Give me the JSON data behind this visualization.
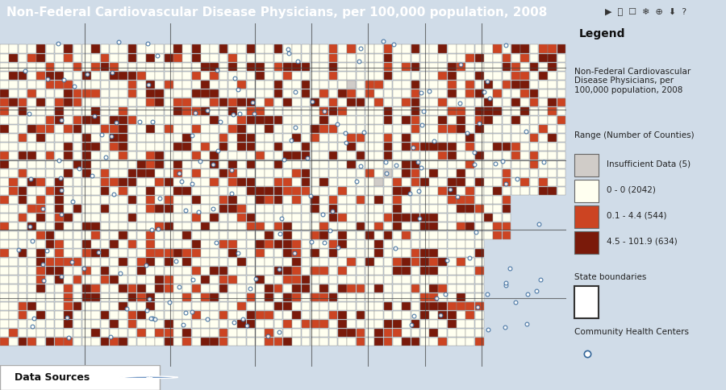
{
  "title": "Non-Federal Cardiovascular Disease Physicians, per 100,000 population, 2008",
  "title_bar_color": "#4a7ab5",
  "title_text_color": "#ffffff",
  "title_fontsize": 11,
  "map_bg_color": "#b8e8e8",
  "map_land_color": "#f5f0e0",
  "toolbar_bg": "#d0dce8",
  "legend_title": "Legend",
  "legend_subtitle": "Non-Federal Cardiovascular\nDisease Physicians, per\n100,000 population, 2008",
  "legend_range_label": "Range (Number of Counties)",
  "legend_entries": [
    {
      "label": "Insufficient Data (5)",
      "color": "#d0ccc8"
    },
    {
      "label": "0 - 0 (2042)",
      "color": "#fffff0"
    },
    {
      "label": "0.1 - 4.4 (544)",
      "color": "#cc4422"
    },
    {
      "label": "4.5 - 101.9 (634)",
      "color": "#7a1a0a"
    }
  ],
  "state_boundary_label": "State boundaries",
  "community_label": "Community Health Centers",
  "bottom_bar_color": "#e8e8e8",
  "bottom_text": "Data Sources",
  "fig_width": 9.0,
  "fig_height": 4.84,
  "dpi": 100
}
